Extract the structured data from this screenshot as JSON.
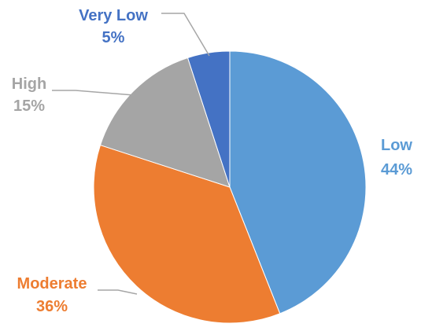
{
  "chart_data": {
    "type": "pie",
    "title": "",
    "slices": [
      {
        "label": "Low",
        "value": 44,
        "text": "44%",
        "color": "#5B9BD5"
      },
      {
        "label": "Moderate",
        "value": 36,
        "text": "36%",
        "color": "#ED7D31"
      },
      {
        "label": "High",
        "value": 15,
        "text": "15%",
        "color": "#A5A5A5"
      },
      {
        "label": "Very Low",
        "value": 5,
        "text": "5%",
        "color": "#4472C4"
      }
    ],
    "start_angle_deg": 0,
    "direction": "clockwise",
    "legend": "none",
    "data_labels": "outside with leader lines"
  }
}
